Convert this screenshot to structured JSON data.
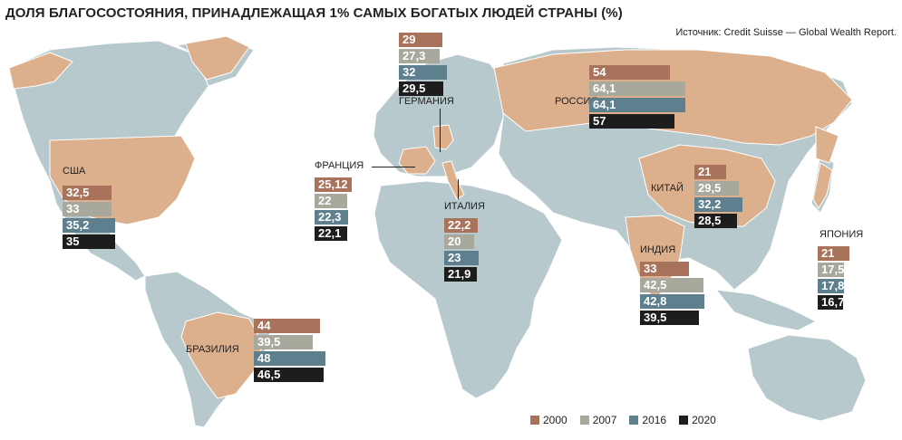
{
  "title": "ДОЛЯ БЛАГОСОСТОЯНИЯ, ПРИНАДЛЕЖАЩАЯ 1% САМЫХ БОГАТЫХ ЛЮДЕЙ СТРАНЫ (%)",
  "source": "Источник: Credit Suisse — Global Wealth Report.",
  "colors": {
    "ocean": "#ffffff",
    "land": "#b7c9cc",
    "highlight": "#ddb08d",
    "border": "#ffffff",
    "y2000": "#a8735a",
    "y2007": "#a8a99c",
    "y2016": "#5d7f8e",
    "y2020": "#1d1d1d"
  },
  "chart_data": {
    "type": "bar",
    "title": "ДОЛЯ БЛАГОСОСТОЯНИЯ, ПРИНАДЛЕЖАЩАЯ 1% САМЫХ БОГАТЫХ ЛЮДЕЙ СТРАНЫ (%)",
    "series_names": [
      "2000",
      "2007",
      "2016",
      "2020"
    ],
    "countries": [
      {
        "name": "США",
        "values": [
          "32,5",
          "33",
          "35,2",
          "35"
        ]
      },
      {
        "name": "ГЕРМАНИЯ",
        "values": [
          "29",
          "27,3",
          "32",
          "29,5"
        ]
      },
      {
        "name": "РОССИЯ",
        "values": [
          "54",
          "64,1",
          "64,1",
          "57"
        ]
      },
      {
        "name": "ФРАНЦИЯ",
        "values": [
          "25,12",
          "22",
          "22,3",
          "22,1"
        ]
      },
      {
        "name": "ИТАЛИЯ",
        "values": [
          "22,2",
          "20",
          "23",
          "21,9"
        ]
      },
      {
        "name": "КИТАЙ",
        "values": [
          "21",
          "29,5",
          "32,2",
          "28,5"
        ]
      },
      {
        "name": "ИНДИЯ",
        "values": [
          "33",
          "42,5",
          "42,8",
          "39,5"
        ]
      },
      {
        "name": "ЯПОНИЯ",
        "values": [
          "21",
          "17,5",
          "17,8",
          "16,7"
        ]
      },
      {
        "name": "БРАЗИЛИЯ",
        "values": [
          "44",
          "39,5",
          "48",
          "46,5"
        ]
      }
    ]
  }
}
